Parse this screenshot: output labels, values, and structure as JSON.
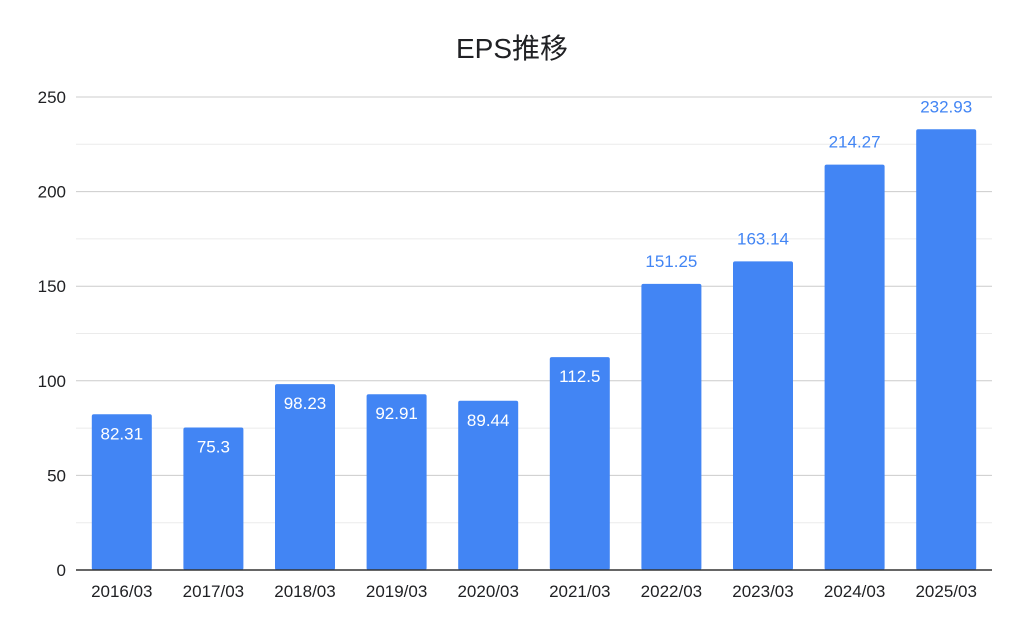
{
  "chart_data": {
    "type": "bar",
    "title": "EPS推移",
    "xlabel": "",
    "ylabel": "",
    "categories": [
      "2016/03",
      "2017/03",
      "2018/03",
      "2019/03",
      "2020/03",
      "2021/03",
      "2022/03",
      "2023/03",
      "2024/03",
      "2025/03"
    ],
    "values": [
      82.31,
      75.3,
      98.23,
      92.91,
      89.44,
      112.5,
      151.25,
      163.14,
      214.27,
      232.93
    ],
    "value_labels": [
      "82.31",
      "75.3",
      "98.23",
      "92.91",
      "89.44",
      "112.5",
      "151.25",
      "163.14",
      "214.27",
      "232.93"
    ],
    "ylim": [
      0,
      250
    ],
    "yticks": [
      0,
      50,
      100,
      150,
      200,
      250
    ],
    "ytick_labels": [
      "0",
      "50",
      "100",
      "150",
      "200",
      "250"
    ],
    "grid": true,
    "legend": "none",
    "colors": {
      "bar": "#4285f4",
      "label_outside": "#4285f4",
      "label_inside": "#ffffff",
      "grid_major": "#cccccc",
      "grid_minor": "#ebebeb",
      "axis": "#333333"
    }
  }
}
